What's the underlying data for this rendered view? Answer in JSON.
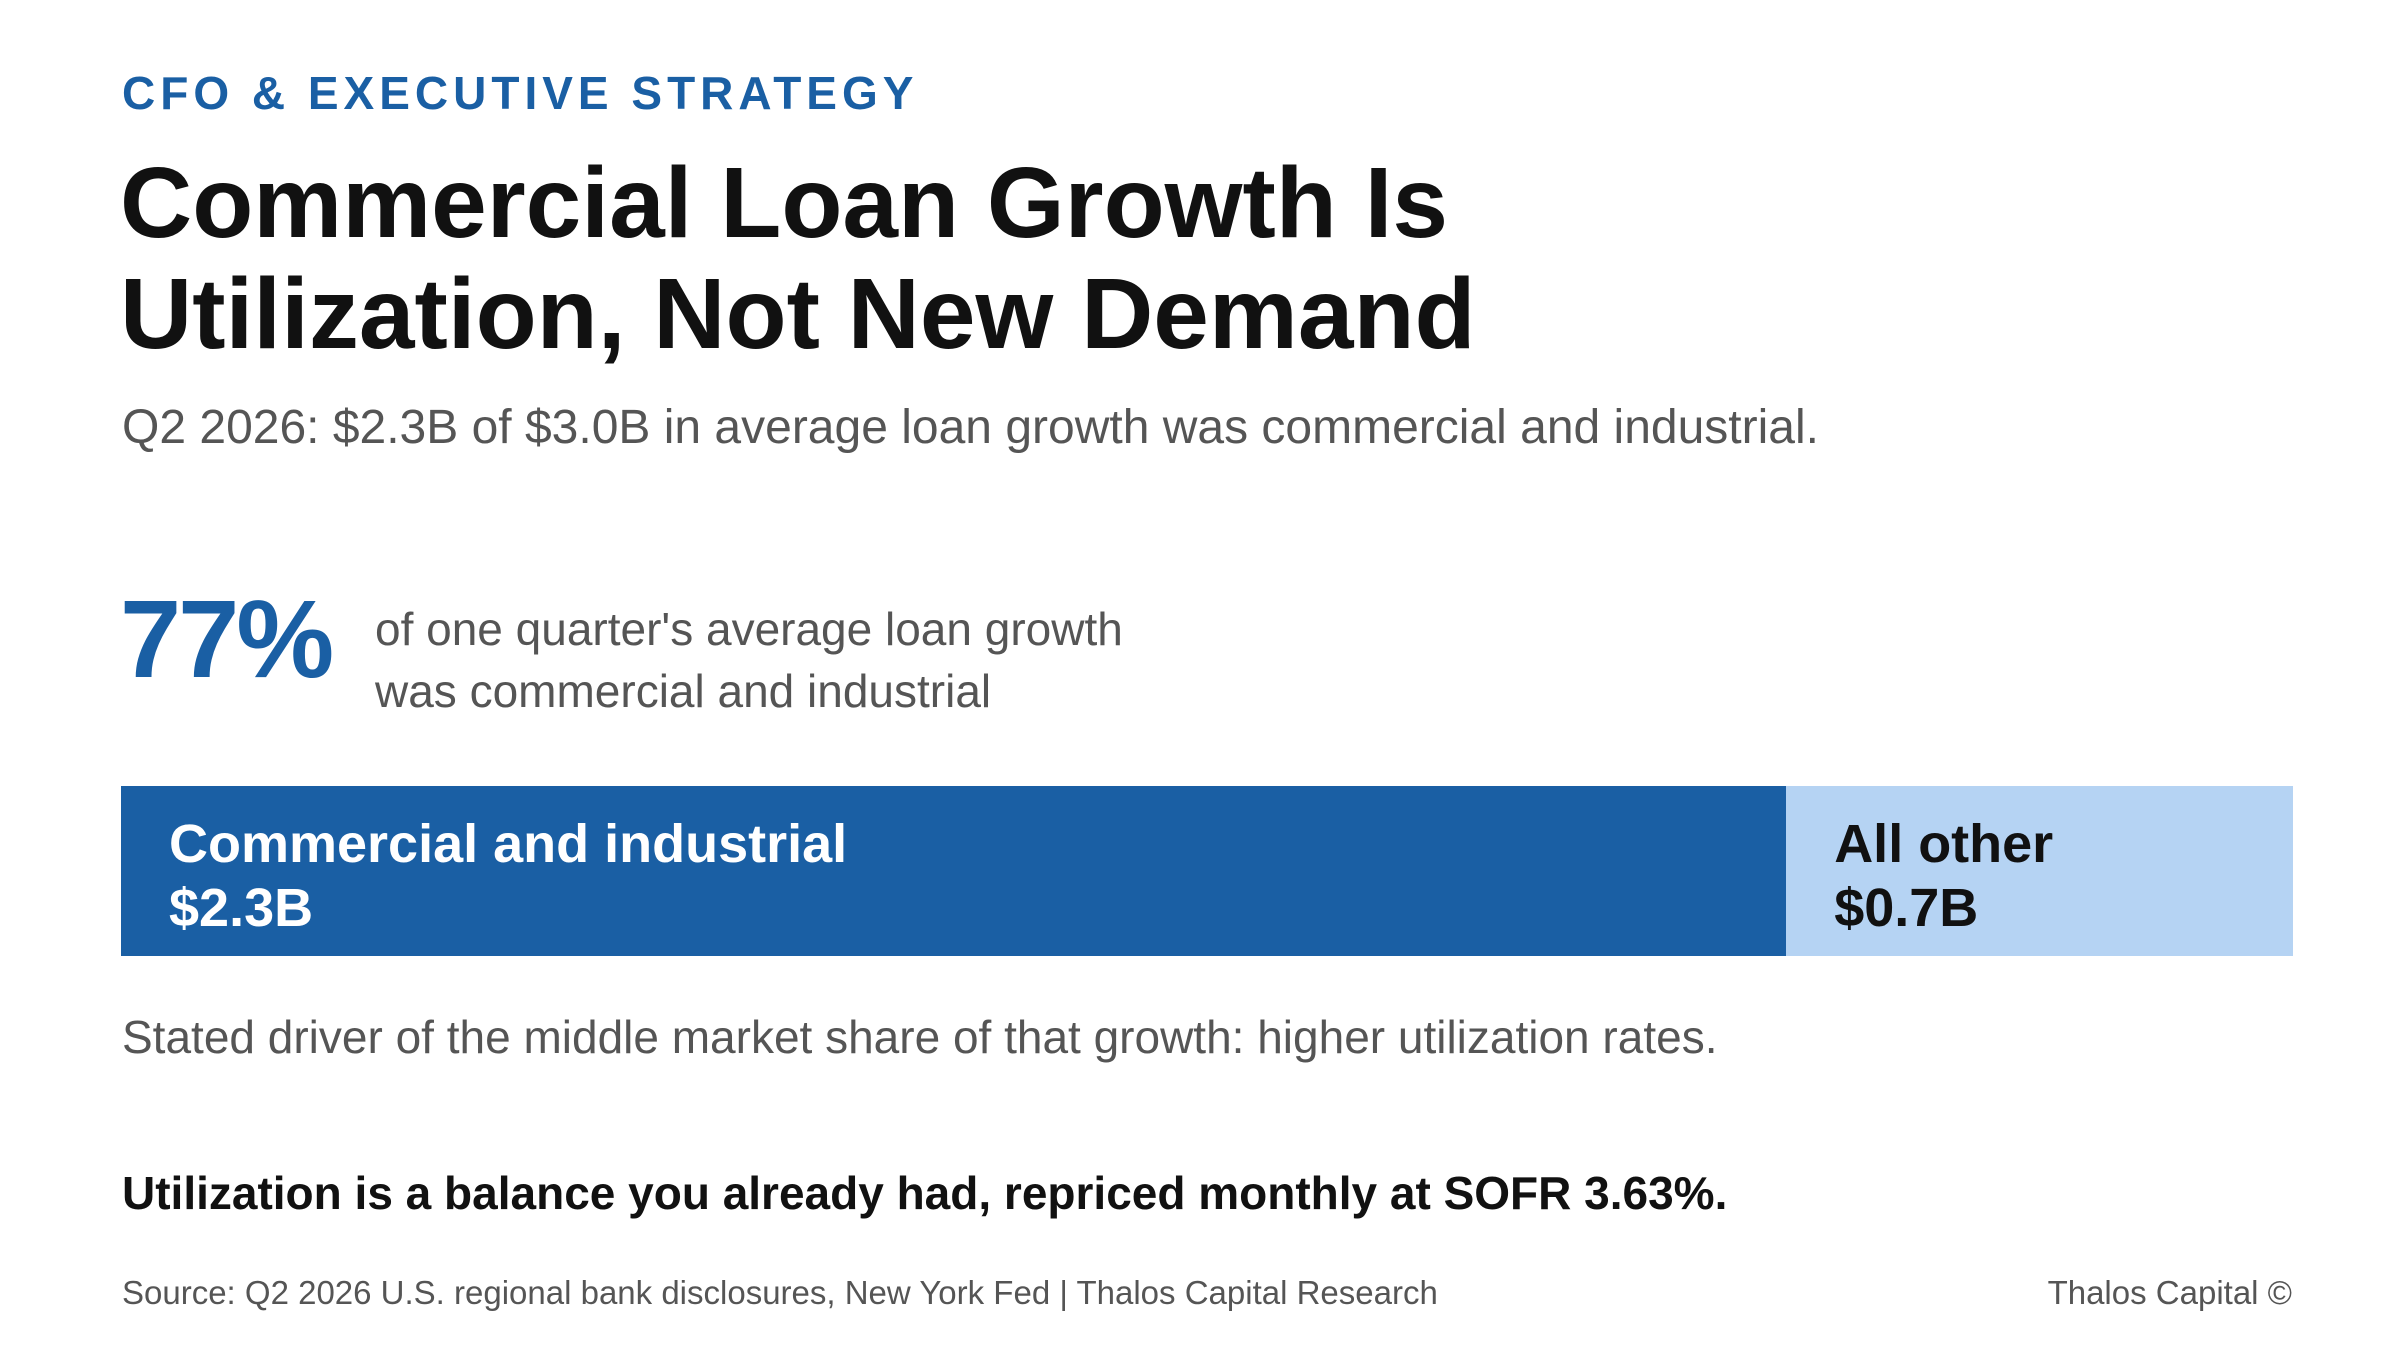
{
  "header": {
    "kicker": "CFO & EXECUTIVE STRATEGY",
    "title_line1": "Commercial Loan Growth Is",
    "title_line2": "Utilization, Not New Demand",
    "subtitle": "Q2 2026: $2.3B of $3.0B in average loan growth was commercial and industrial."
  },
  "stat": {
    "value": "77%",
    "desc_line1": "of one quarter's average loan growth",
    "desc_line2": "was commercial and industrial"
  },
  "chart_data": {
    "type": "bar",
    "orientation": "horizontal-stacked",
    "title": "",
    "total": 3.0,
    "unit": "$B",
    "series": [
      {
        "name": "Commercial and industrial",
        "value": 2.3,
        "value_label": "$2.3B",
        "color": "#1a5fa4"
      },
      {
        "name": "All other",
        "value": 0.7,
        "value_label": "$0.7B",
        "color": "#b5d3f3"
      }
    ]
  },
  "note": "Stated driver of the middle market share of that growth: higher utilization rates.",
  "takeaway": "Utilization is a balance you already had, repriced monthly at SOFR 3.63%.",
  "footer": {
    "source": "Source: Q2 2026 U.S. regional bank disclosures, New York Fed | Thalos Capital Research",
    "brand": "Thalos Capital ©"
  }
}
